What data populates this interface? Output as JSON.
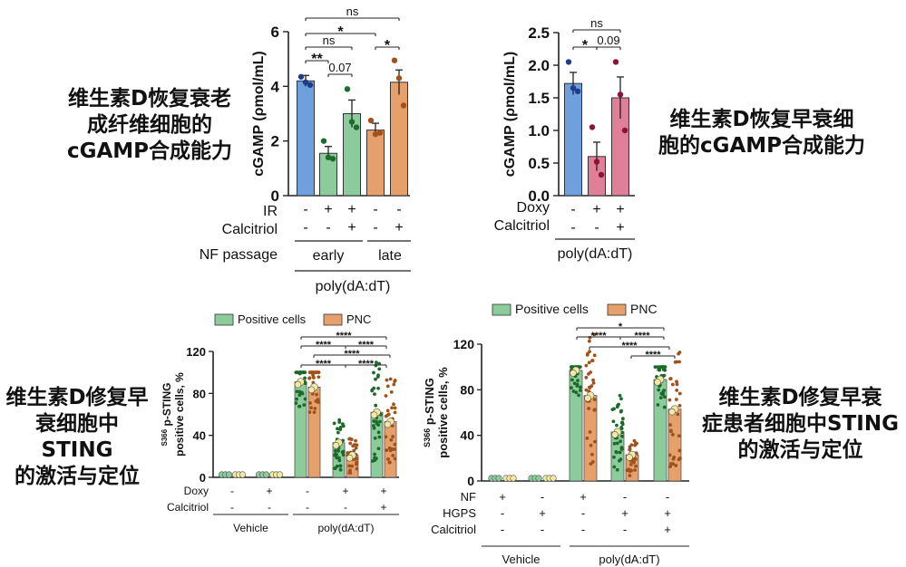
{
  "captions": {
    "c1": [
      "维生素D恢复衰老",
      "成纤维细胞的",
      "cGAMP合成能力"
    ],
    "c2": [
      "维生素D恢复早衰细",
      "胞的cGAMP合成能力"
    ],
    "c3": [
      "维生素D修复早",
      "衰细胞中STING",
      "的激活与定位"
    ],
    "c4": [
      "维生素D修复早衰",
      "症患者细胞中STING",
      "的激活与定位"
    ]
  },
  "colors": {
    "blue": "#6f9fdd",
    "green": "#8ccc9c",
    "orange": "#e5a06c",
    "pink": "#e07f98",
    "dot_blue": "#1f3d8c",
    "dot_green": "#1c6b2a",
    "dot_orange": "#a0521a",
    "dot_pink": "#8c1238",
    "dot_yellow": "#f4e9a2"
  },
  "chart_data": [
    {
      "id": "A",
      "type": "bar",
      "ylabel": "cGAMP (ρmol/mL)",
      "ylim": [
        0,
        6
      ],
      "yticks": [
        "0",
        "2",
        "4",
        "6"
      ],
      "bars": [
        {
          "value": 4.2,
          "err": 0.2,
          "color": "blue",
          "dot": "dot_blue",
          "points": [
            4.35,
            4.15,
            4.05
          ]
        },
        {
          "value": 1.55,
          "err": 0.25,
          "color": "green",
          "dot": "dot_green",
          "points": [
            2.0,
            1.4,
            1.35
          ]
        },
        {
          "value": 3.0,
          "err": 0.5,
          "color": "green",
          "dot": "dot_green",
          "points": [
            3.9,
            2.7,
            2.5
          ]
        },
        {
          "value": 2.4,
          "err": 0.25,
          "color": "orange",
          "dot": "dot_orange",
          "points": [
            2.75,
            2.25,
            2.3
          ]
        },
        {
          "value": 4.15,
          "err": 0.45,
          "color": "orange",
          "dot": "dot_orange",
          "points": [
            4.95,
            4.3,
            3.3
          ]
        }
      ],
      "rows": [
        {
          "label": "IR",
          "values": [
            "-",
            "+",
            "+",
            "-",
            "-"
          ]
        },
        {
          "label": "Calcitriol",
          "values": [
            "-",
            "-",
            "+",
            "-",
            "+"
          ]
        }
      ],
      "passage_label": "NF passage",
      "groups": [
        "early",
        "late"
      ],
      "bottom_group": "poly(dA:dT)",
      "significance": [
        "ns",
        "*",
        "ns",
        "**",
        "0.07",
        "*"
      ]
    },
    {
      "id": "B",
      "type": "bar",
      "ylabel": "cGAMP (ρmol/mL)",
      "ylim": [
        0,
        2.5
      ],
      "yticks": [
        "0.0",
        "0.5",
        "1.0",
        "1.5",
        "2.0",
        "2.5"
      ],
      "bars": [
        {
          "value": 1.72,
          "err": 0.17,
          "color": "blue",
          "dot": "dot_blue",
          "points": [
            2.05,
            1.65,
            1.6
          ]
        },
        {
          "value": 0.6,
          "err": 0.22,
          "color": "pink",
          "dot": "dot_pink",
          "points": [
            1.05,
            0.52,
            0.32
          ]
        },
        {
          "value": 1.5,
          "err": 0.32,
          "color": "pink",
          "dot": "dot_pink",
          "points": [
            2.05,
            1.55,
            1.0
          ]
        }
      ],
      "rows": [
        {
          "label": "Doxy",
          "values": [
            "-",
            "+",
            "+"
          ]
        },
        {
          "label": "Calcitriol",
          "values": [
            "-",
            "-",
            "+"
          ]
        }
      ],
      "bottom_group": "poly(dA:dT)",
      "significance": [
        "ns",
        "*",
        "0.09"
      ]
    },
    {
      "id": "C",
      "type": "bar",
      "ylabel_sup": "S366",
      "ylabel_line1": " p-STING",
      "ylabel_line2": "positive cells, %",
      "ylim": [
        0,
        120
      ],
      "yticks": [
        "0",
        "40",
        "80",
        "120"
      ],
      "legend": [
        "Positive cells",
        "PNC"
      ],
      "pairs": [
        {
          "pos": 0.5,
          "pnc": 0.5
        },
        {
          "pos": 0.5,
          "pnc": 0.5
        },
        {
          "pos": 91,
          "pnc": 86
        },
        {
          "pos": 33,
          "pnc": 21
        },
        {
          "pos": 62,
          "pnc": 53
        }
      ],
      "rows": [
        {
          "label": "Doxy",
          "values": [
            "-",
            "+",
            "-",
            "+",
            "+"
          ]
        },
        {
          "label": "Calcitriol",
          "values": [
            "-",
            "-",
            "-",
            "-",
            "+"
          ]
        }
      ],
      "groups": [
        "Vehicle",
        "poly(dA:dT)"
      ],
      "significance": [
        "****",
        "****",
        "****",
        "****",
        "****",
        "****"
      ]
    },
    {
      "id": "D",
      "type": "bar",
      "ylabel_sup": "S366",
      "ylabel_line1": " p-STING",
      "ylabel_line2": "positive cells, %",
      "ylim": [
        0,
        120
      ],
      "yticks": [
        "0",
        "40",
        "80",
        "120"
      ],
      "legend": [
        "Positive cells",
        "PNC"
      ],
      "pairs": [
        {
          "pos": 0.5,
          "pnc": 0.5
        },
        {
          "pos": 0.5,
          "pnc": 0.5
        },
        {
          "pos": 97,
          "pnc": 75
        },
        {
          "pos": 43,
          "pnc": 23
        },
        {
          "pos": 89,
          "pnc": 63
        }
      ],
      "rows": [
        {
          "label": "NF",
          "values": [
            "+",
            "-",
            "+",
            "-",
            "-"
          ]
        },
        {
          "label": "HGPS",
          "values": [
            "-",
            "+",
            "-",
            "+",
            "+"
          ]
        },
        {
          "label": "Calcitriol",
          "values": [
            "-",
            "-",
            "-",
            "-",
            "+"
          ]
        }
      ],
      "groups": [
        "Vehicle",
        "poly(dA:dT)"
      ],
      "significance": [
        "*",
        "****",
        "****",
        "****",
        "****"
      ]
    }
  ]
}
